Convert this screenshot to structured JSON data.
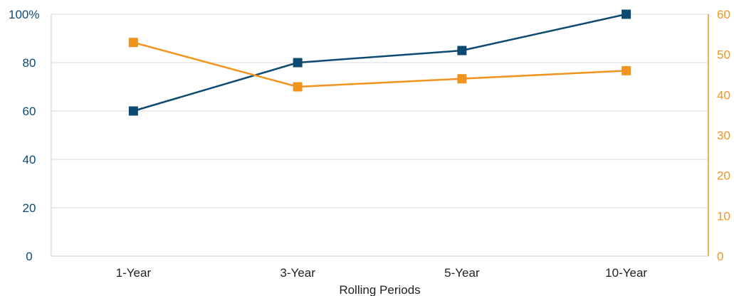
{
  "chart_data": {
    "type": "line",
    "categories": [
      "1-Year",
      "3-Year",
      "5-Year",
      "10-Year"
    ],
    "xlabel": "Rolling Periods",
    "ylabel": "",
    "y_left": {
      "ylim": [
        0,
        100
      ],
      "ticks": [
        "0",
        "20",
        "40",
        "60",
        "80",
        "100%"
      ],
      "color": "#0d4a72"
    },
    "y_right": {
      "ylim": [
        0,
        60
      ],
      "ticks": [
        "0",
        "10",
        "20",
        "30",
        "40",
        "50",
        "60"
      ],
      "color": "#f0941e"
    },
    "grid": true,
    "legend": "none",
    "series": [
      {
        "values": [
          60,
          80,
          85,
          100
        ],
        "axis": "left",
        "color": "#0d4a72",
        "marker": "square"
      },
      {
        "values": [
          53,
          42,
          44,
          46
        ],
        "axis": "right",
        "color": "#f0941e",
        "marker": "square"
      }
    ]
  }
}
